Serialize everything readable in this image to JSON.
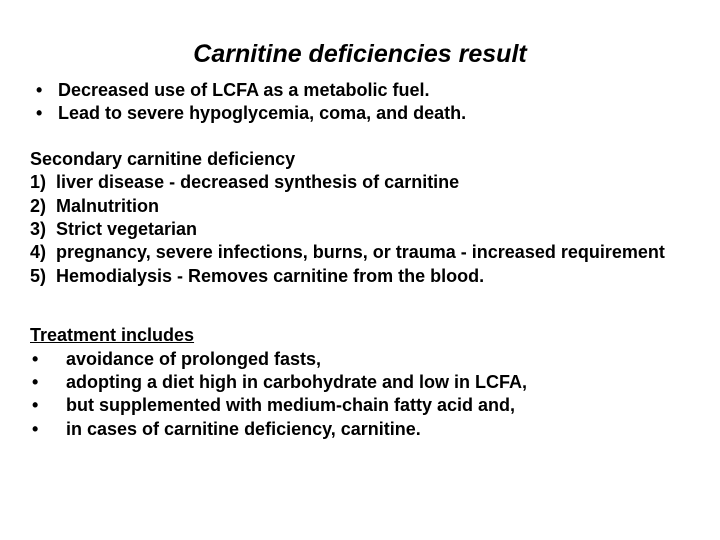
{
  "title": "Carnitine deficiencies result",
  "intro_bullets": [
    "Decreased use of LCFA as a metabolic fuel.",
    "Lead to severe hypoglycemia, coma, and death."
  ],
  "secondary": {
    "heading": "Secondary carnitine deficiency",
    "items": [
      {
        "n": "1)",
        "text": "liver disease - decreased synthesis of carnitine"
      },
      {
        "n": "2)",
        "text": "Malnutrition"
      },
      {
        "n": "3)",
        "text": "Strict vegetarian"
      },
      {
        "n": "4)",
        "text": "pregnancy, severe infections, burns, or trauma - increased requirement"
      },
      {
        "n": "5)",
        "text": "Hemodialysis - Removes carnitine from the blood."
      }
    ]
  },
  "treatment": {
    "heading": "Treatment includes",
    "items": [
      "avoidance of prolonged fasts,",
      "adopting a diet high in carbohydrate and low in LCFA,",
      "but supplemented with medium-chain fatty acid and,",
      "in cases of carnitine deficiency, carnitine."
    ]
  },
  "style": {
    "background": "#ffffff",
    "text_color": "#000000",
    "title_fontsize": 25,
    "body_fontsize": 18,
    "font_family": "Arial"
  }
}
